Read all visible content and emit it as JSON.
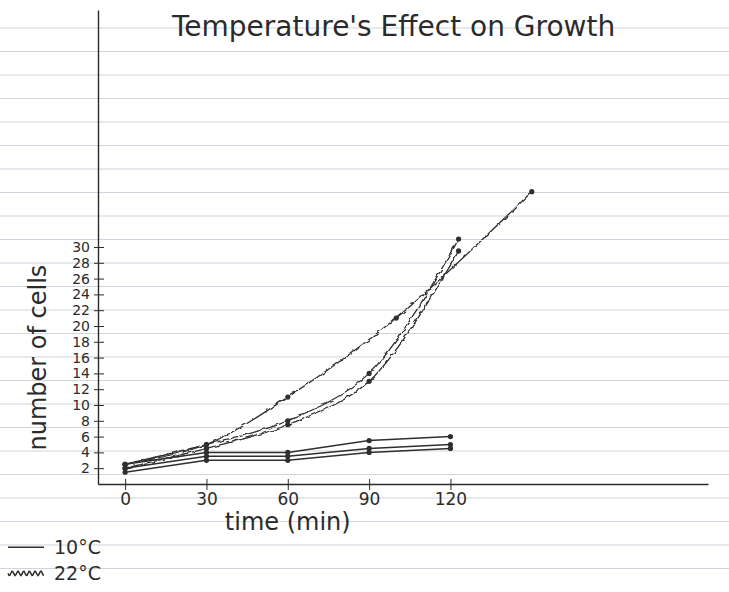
{
  "chart_data": {
    "type": "line",
    "title": "Temperature's Effect on Growth",
    "x_label": "time (min)",
    "y_label": "number of cells",
    "xlim": [
      -10,
      215
    ],
    "xticks": [
      0,
      30,
      60,
      90,
      120
    ],
    "ylim": [
      0,
      60
    ],
    "yticks": [
      2,
      4,
      6,
      8,
      10,
      12,
      14,
      16,
      18,
      20,
      22,
      24,
      26,
      28,
      30
    ],
    "legend": "bottom-left",
    "series": [
      {
        "name": "10°C",
        "color": "#2f2f2f",
        "line_style": "solid",
        "marker": "dot",
        "x": [
          0,
          30,
          60,
          90,
          120
        ],
        "values": [
          2.5,
          4,
          4,
          5.5,
          6
        ]
      },
      {
        "name": "10°C",
        "color": "#2f2f2f",
        "line_style": "solid",
        "marker": "dot",
        "x": [
          0,
          30,
          60,
          90,
          120
        ],
        "values": [
          2,
          3.5,
          3.5,
          4.5,
          5
        ]
      },
      {
        "name": "10°C",
        "color": "#2f2f2f",
        "line_style": "solid",
        "marker": "dot",
        "x": [
          0,
          30,
          60,
          90,
          120
        ],
        "values": [
          1.5,
          3,
          3,
          4,
          4.5
        ]
      },
      {
        "name": "22°C",
        "color": "#2f2f2f",
        "line_style": "wavy",
        "marker": "dot",
        "x": [
          0,
          30,
          60,
          100,
          150
        ],
        "values": [
          2.5,
          5,
          11,
          21,
          37
        ]
      },
      {
        "name": "22°C",
        "color": "#2f2f2f",
        "line_style": "wavy",
        "marker": "dot",
        "x": [
          0,
          30,
          60,
          90,
          123
        ],
        "values": [
          2.5,
          5,
          8,
          14,
          31
        ]
      },
      {
        "name": "22°C",
        "color": "#2f2f2f",
        "line_style": "wavy",
        "marker": "dot",
        "x": [
          0,
          30,
          60,
          90,
          123
        ],
        "values": [
          2,
          4.5,
          7.5,
          13,
          29.5
        ]
      }
    ]
  }
}
